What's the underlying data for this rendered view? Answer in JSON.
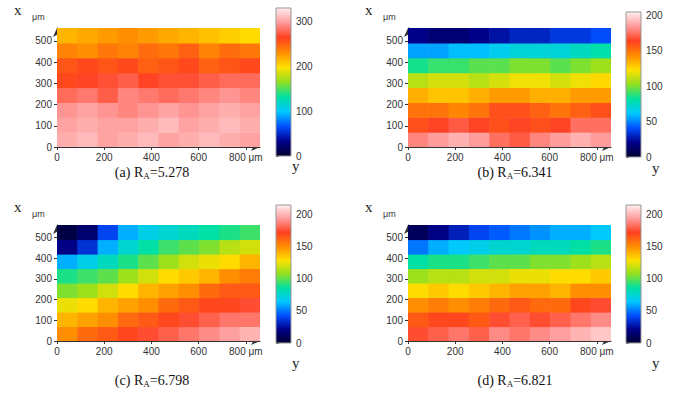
{
  "chart_data": [
    {
      "type": "heatmap",
      "caption": [
        {
          "text": "(a) R"
        },
        {
          "text": "A",
          "sub": true
        },
        {
          "text": "=5.278"
        }
      ],
      "x_label": "x",
      "x_unit": "μm",
      "y_label": "y",
      "xlim": [
        0,
        560
      ],
      "xticks": [
        0,
        100,
        200,
        300,
        400,
        500
      ],
      "ylim": [
        0,
        860
      ],
      "yticks": [
        0,
        200,
        400,
        600,
        {
          "value": 800,
          "label": "800 μm"
        }
      ],
      "x_bins": [
        0,
        70,
        140,
        210,
        280,
        350,
        420,
        490,
        560
      ],
      "y_bins": [
        0,
        86,
        172,
        258,
        344,
        430,
        516,
        602,
        688,
        774,
        860
      ],
      "cells": [
        [
          305,
          310,
          300,
          305,
          310,
          300,
          305,
          310,
          305,
          300
        ],
        [
          300,
          305,
          300,
          300,
          305,
          310,
          300,
          305,
          310,
          305
        ],
        [
          295,
          300,
          295,
          290,
          295,
          300,
          295,
          300,
          305,
          300
        ],
        [
          280,
          285,
          275,
          290,
          285,
          280,
          285,
          290,
          295,
          290
        ],
        [
          260,
          265,
          270,
          275,
          265,
          270,
          270,
          275,
          280,
          280
        ],
        [
          255,
          260,
          255,
          260,
          250,
          255,
          260,
          250,
          255,
          260
        ],
        [
          235,
          230,
          240,
          235,
          245,
          240,
          250,
          235,
          245,
          240
        ],
        [
          215,
          220,
          225,
          230,
          225,
          220,
          215,
          210,
          205,
          200
        ]
      ],
      "colorbar_lim": [
        0,
        330
      ],
      "colorbar_ticks": [
        0,
        100,
        200,
        300
      ]
    },
    {
      "type": "heatmap",
      "caption": [
        {
          "text": "(b) R"
        },
        {
          "text": "A",
          "sub": true
        },
        {
          "text": "=6.341"
        }
      ],
      "x_label": "x",
      "x_unit": "μm",
      "y_label": "y",
      "xlim": [
        0,
        560
      ],
      "xticks": [
        0,
        100,
        200,
        300,
        400,
        500
      ],
      "ylim": [
        0,
        860
      ],
      "yticks": [
        0,
        200,
        400,
        600,
        {
          "value": 800,
          "label": "800 μm"
        }
      ],
      "x_bins": [
        0,
        70,
        140,
        210,
        280,
        350,
        420,
        490,
        560
      ],
      "y_bins": [
        0,
        86,
        172,
        258,
        344,
        430,
        516,
        602,
        688,
        774,
        860
      ],
      "cells": [
        [
          180,
          185,
          190,
          185,
          175,
          170,
          180,
          185,
          190,
          185
        ],
        [
          160,
          165,
          170,
          165,
          160,
          165,
          160,
          165,
          175,
          175
        ],
        [
          150,
          150,
          145,
          150,
          160,
          160,
          155,
          150,
          155,
          160
        ],
        [
          135,
          130,
          130,
          135,
          140,
          140,
          135,
          135,
          140,
          140
        ],
        [
          110,
          115,
          115,
          110,
          115,
          120,
          120,
          115,
          120,
          125
        ],
        [
          85,
          90,
          90,
          95,
          95,
          100,
          100,
          95,
          100,
          105
        ],
        [
          55,
          55,
          60,
          60,
          65,
          70,
          70,
          70,
          75,
          80
        ],
        [
          20,
          15,
          15,
          20,
          25,
          30,
          30,
          35,
          35,
          40
        ]
      ],
      "colorbar_lim": [
        0,
        205
      ],
      "colorbar_ticks": [
        0,
        50,
        100,
        150,
        200
      ]
    },
    {
      "type": "heatmap",
      "caption": [
        {
          "text": "(c) R"
        },
        {
          "text": "A",
          "sub": true
        },
        {
          "text": "=6.798"
        }
      ],
      "x_label": "x",
      "x_unit": "μm",
      "y_label": "y",
      "xlim": [
        0,
        560
      ],
      "xticks": [
        0,
        100,
        200,
        300,
        400,
        500
      ],
      "ylim": [
        0,
        860
      ],
      "yticks": [
        0,
        200,
        400,
        600,
        {
          "value": 800,
          "label": "800 μm"
        }
      ],
      "x_bins": [
        0,
        70,
        140,
        210,
        280,
        350,
        420,
        490,
        560
      ],
      "y_bins": [
        0,
        86,
        172,
        258,
        344,
        430,
        516,
        602,
        688,
        774,
        860
      ],
      "cells": [
        [
          150,
          160,
          165,
          170,
          175,
          180,
          185,
          190,
          195,
          200
        ],
        [
          140,
          145,
          150,
          160,
          165,
          170,
          175,
          180,
          185,
          185
        ],
        [
          125,
          130,
          140,
          145,
          150,
          160,
          165,
          170,
          170,
          175
        ],
        [
          105,
          110,
          120,
          130,
          140,
          145,
          150,
          160,
          165,
          165
        ],
        [
          90,
          95,
          100,
          110,
          120,
          130,
          135,
          140,
          150,
          155
        ],
        [
          60,
          70,
          80,
          90,
          100,
          110,
          120,
          125,
          130,
          140
        ],
        [
          20,
          35,
          60,
          75,
          85,
          95,
          100,
          105,
          115,
          120
        ],
        [
          5,
          15,
          40,
          60,
          70,
          75,
          80,
          85,
          90,
          95
        ]
      ],
      "colorbar_lim": [
        0,
        215
      ],
      "colorbar_ticks": [
        0,
        50,
        100,
        150,
        200
      ]
    },
    {
      "type": "heatmap",
      "caption": [
        {
          "text": "(d) R"
        },
        {
          "text": "A",
          "sub": true
        },
        {
          "text": "=6.821"
        }
      ],
      "x_label": "x",
      "x_unit": "μm",
      "y_label": "y",
      "xlim": [
        0,
        560
      ],
      "xticks": [
        0,
        100,
        200,
        300,
        400,
        500
      ],
      "ylim": [
        0,
        860
      ],
      "yticks": [
        0,
        200,
        400,
        600,
        {
          "value": 800,
          "label": "800 μm"
        }
      ],
      "x_bins": [
        0,
        70,
        140,
        210,
        280,
        350,
        420,
        490,
        560
      ],
      "y_bins": [
        0,
        86,
        172,
        258,
        344,
        430,
        516,
        602,
        688,
        774,
        860
      ],
      "cells": [
        [
          175,
          180,
          185,
          180,
          190,
          185,
          190,
          195,
          200,
          205
        ],
        [
          165,
          170,
          170,
          165,
          175,
          180,
          175,
          180,
          185,
          190
        ],
        [
          150,
          155,
          150,
          155,
          160,
          165,
          160,
          160,
          170,
          175
        ],
        [
          130,
          135,
          130,
          135,
          140,
          145,
          145,
          140,
          150,
          150
        ],
        [
          110,
          115,
          115,
          120,
          120,
          125,
          125,
          130,
          130,
          135
        ],
        [
          85,
          90,
          90,
          95,
          100,
          100,
          105,
          105,
          110,
          115
        ],
        [
          50,
          60,
          65,
          70,
          75,
          75,
          80,
          80,
          85,
          90
        ],
        [
          10,
          20,
          30,
          40,
          45,
          50,
          55,
          60,
          60,
          65
        ]
      ],
      "colorbar_lim": [
        0,
        215
      ],
      "colorbar_ticks": [
        0,
        50,
        100,
        150,
        200
      ]
    }
  ]
}
